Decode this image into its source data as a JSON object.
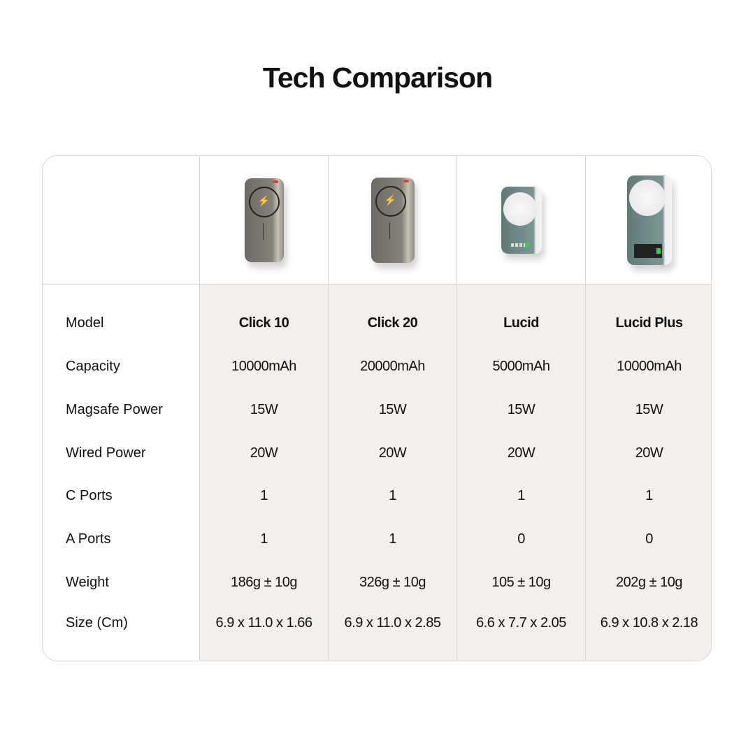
{
  "title": "Tech Comparison",
  "row_labels": [
    "Model",
    "Capacity",
    "Magsafe Power",
    "Wired Power",
    "C Ports",
    "A Ports",
    "Weight",
    "Size (Cm)"
  ],
  "products": [
    {
      "model": "Click 10",
      "capacity": "10000mAh",
      "magsafe": "15W",
      "wired": "20W",
      "c_ports": "1",
      "a_ports": "1",
      "weight": "186g ± 10g",
      "size": "6.9 x 11.0 x 1.66"
    },
    {
      "model": "Click 20",
      "capacity": "20000mAh",
      "magsafe": "15W",
      "wired": "20W",
      "c_ports": "1",
      "a_ports": "1",
      "weight": "326g ± 10g",
      "size": "6.9 x 11.0 x 2.85"
    },
    {
      "model": "Lucid",
      "capacity": "5000mAh",
      "magsafe": "15W",
      "wired": "20W",
      "c_ports": "1",
      "a_ports": "0",
      "weight": "105 ± 10g",
      "size": "6.6 x 7.7 x 2.05"
    },
    {
      "model": "Lucid Plus",
      "capacity": "10000mAh",
      "magsafe": "15W",
      "wired": "20W",
      "c_ports": "1",
      "a_ports": "0",
      "weight": "202g ± 10g",
      "size": "6.9 x 10.8 x 2.18"
    }
  ],
  "colors": {
    "data_bg": "#f2efed",
    "border": "#d6d6d6",
    "text": "#111111"
  }
}
